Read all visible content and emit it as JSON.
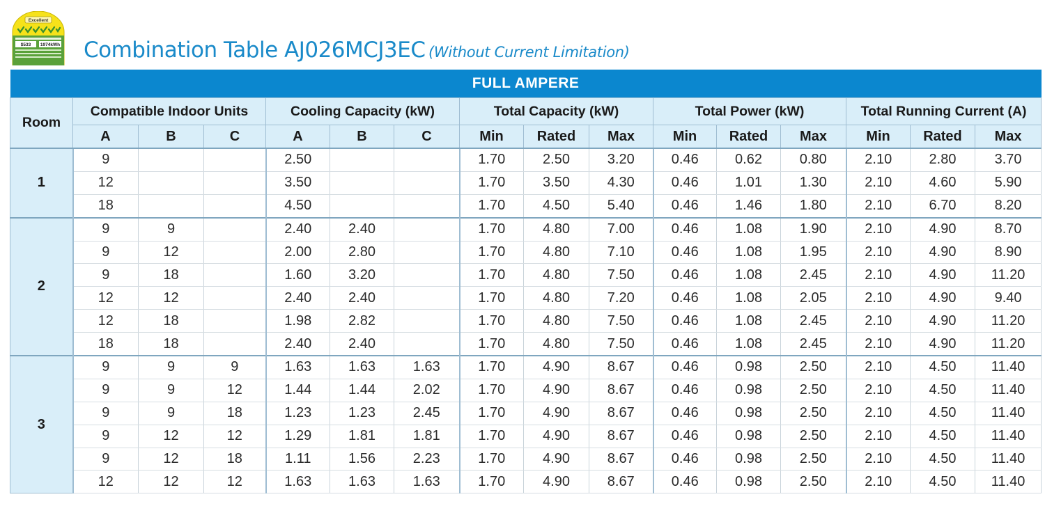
{
  "badge": {
    "rating": "Excellent",
    "stat_left": "$533",
    "stat_right": "1974kWh"
  },
  "title": {
    "main": "Combination Table AJ026MCJ3EC",
    "sub": "(Without Current Limitation)"
  },
  "band_label": "FULL AMPERE",
  "headers": {
    "room": "Room",
    "groups": [
      "Compatible Indoor Units",
      "Cooling Capacity (kW)",
      "Total Capacity (kW)",
      "Total Power (kW)",
      "Total Running Current (A)"
    ],
    "sub": [
      "A",
      "B",
      "C",
      "A",
      "B",
      "C",
      "Min",
      "Rated",
      "Max",
      "Min",
      "Rated",
      "Max",
      "Min",
      "Rated",
      "Max"
    ]
  },
  "groups": [
    {
      "room": "1",
      "rows": [
        [
          "9",
          "",
          "",
          "2.50",
          "",
          "",
          "1.70",
          "2.50",
          "3.20",
          "0.46",
          "0.62",
          "0.80",
          "2.10",
          "2.80",
          "3.70"
        ],
        [
          "12",
          "",
          "",
          "3.50",
          "",
          "",
          "1.70",
          "3.50",
          "4.30",
          "0.46",
          "1.01",
          "1.30",
          "2.10",
          "4.60",
          "5.90"
        ],
        [
          "18",
          "",
          "",
          "4.50",
          "",
          "",
          "1.70",
          "4.50",
          "5.40",
          "0.46",
          "1.46",
          "1.80",
          "2.10",
          "6.70",
          "8.20"
        ]
      ]
    },
    {
      "room": "2",
      "rows": [
        [
          "9",
          "9",
          "",
          "2.40",
          "2.40",
          "",
          "1.70",
          "4.80",
          "7.00",
          "0.46",
          "1.08",
          "1.90",
          "2.10",
          "4.90",
          "8.70"
        ],
        [
          "9",
          "12",
          "",
          "2.00",
          "2.80",
          "",
          "1.70",
          "4.80",
          "7.10",
          "0.46",
          "1.08",
          "1.95",
          "2.10",
          "4.90",
          "8.90"
        ],
        [
          "9",
          "18",
          "",
          "1.60",
          "3.20",
          "",
          "1.70",
          "4.80",
          "7.50",
          "0.46",
          "1.08",
          "2.45",
          "2.10",
          "4.90",
          "11.20"
        ],
        [
          "12",
          "12",
          "",
          "2.40",
          "2.40",
          "",
          "1.70",
          "4.80",
          "7.20",
          "0.46",
          "1.08",
          "2.05",
          "2.10",
          "4.90",
          "9.40"
        ],
        [
          "12",
          "18",
          "",
          "1.98",
          "2.82",
          "",
          "1.70",
          "4.80",
          "7.50",
          "0.46",
          "1.08",
          "2.45",
          "2.10",
          "4.90",
          "11.20"
        ],
        [
          "18",
          "18",
          "",
          "2.40",
          "2.40",
          "",
          "1.70",
          "4.80",
          "7.50",
          "0.46",
          "1.08",
          "2.45",
          "2.10",
          "4.90",
          "11.20"
        ]
      ]
    },
    {
      "room": "3",
      "rows": [
        [
          "9",
          "9",
          "9",
          "1.63",
          "1.63",
          "1.63",
          "1.70",
          "4.90",
          "8.67",
          "0.46",
          "0.98",
          "2.50",
          "2.10",
          "4.50",
          "11.40"
        ],
        [
          "9",
          "9",
          "12",
          "1.44",
          "1.44",
          "2.02",
          "1.70",
          "4.90",
          "8.67",
          "0.46",
          "0.98",
          "2.50",
          "2.10",
          "4.50",
          "11.40"
        ],
        [
          "9",
          "9",
          "18",
          "1.23",
          "1.23",
          "2.45",
          "1.70",
          "4.90",
          "8.67",
          "0.46",
          "0.98",
          "2.50",
          "2.10",
          "4.50",
          "11.40"
        ],
        [
          "9",
          "12",
          "12",
          "1.29",
          "1.81",
          "1.81",
          "1.70",
          "4.90",
          "8.67",
          "0.46",
          "0.98",
          "2.50",
          "2.10",
          "4.50",
          "11.40"
        ],
        [
          "9",
          "12",
          "18",
          "1.11",
          "1.56",
          "2.23",
          "1.70",
          "4.90",
          "8.67",
          "0.46",
          "0.98",
          "2.50",
          "2.10",
          "4.50",
          "11.40"
        ],
        [
          "12",
          "12",
          "12",
          "1.63",
          "1.63",
          "1.63",
          "1.70",
          "4.90",
          "8.67",
          "0.46",
          "0.98",
          "2.50",
          "2.10",
          "4.50",
          "11.40"
        ]
      ]
    }
  ]
}
